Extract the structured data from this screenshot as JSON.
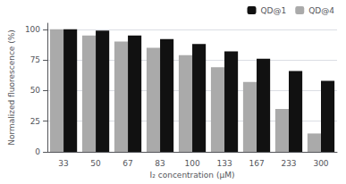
{
  "chart_data": {
    "type": "bar",
    "categories": [
      "33",
      "50",
      "67",
      "83",
      "100",
      "133",
      "167",
      "233",
      "300"
    ],
    "series": [
      {
        "name": "QD@4",
        "color": "#aaaaaa",
        "values": [
          100,
          95,
          90,
          85,
          79,
          69,
          57,
          35,
          15
        ]
      },
      {
        "name": "QD@1",
        "color": "#111111",
        "values": [
          100,
          99,
          95,
          92,
          88,
          82,
          76,
          66,
          58
        ]
      }
    ],
    "xlabel": "I₂ concentration (μM)",
    "ylabel": "Normalized fluorescence (%)",
    "ylim": [
      0,
      105
    ],
    "yticks": [
      0,
      25,
      50,
      75,
      100
    ],
    "grid": true,
    "legend": "upper right"
  }
}
